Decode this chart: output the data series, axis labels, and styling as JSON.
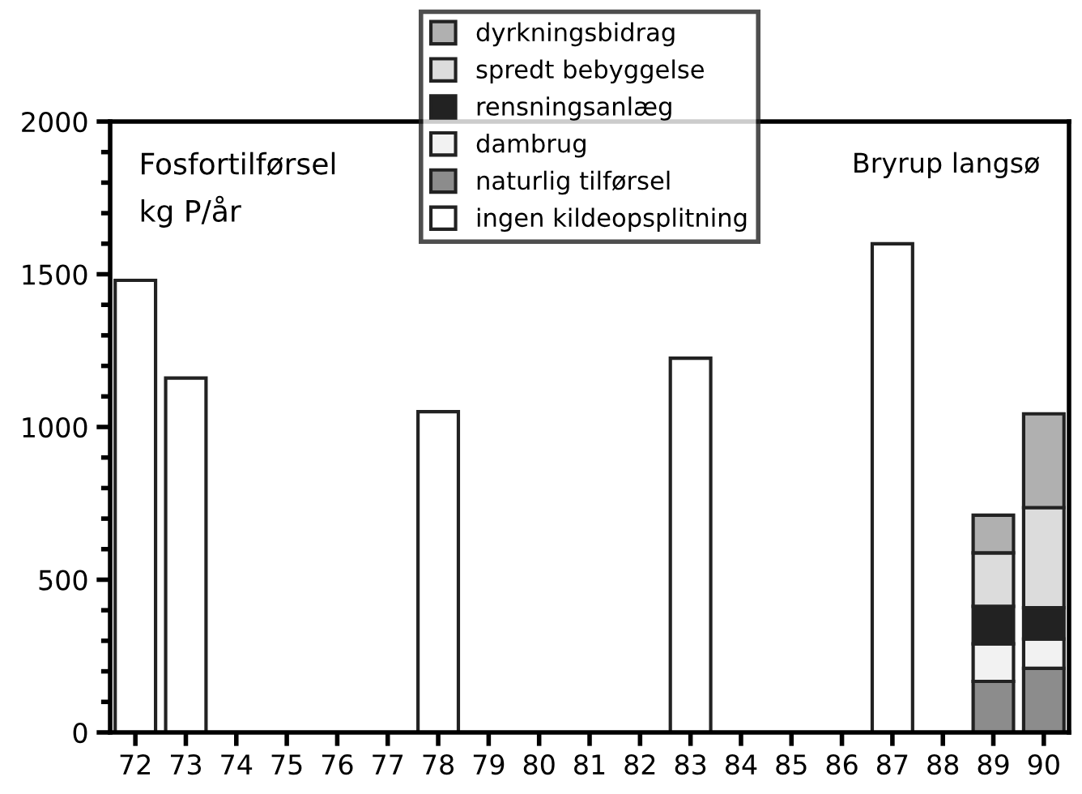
{
  "chart_data": {
    "type": "bar",
    "title": "Fosfortilførsel\nkg P/år",
    "subtitle": "Bryrup langsø",
    "stacked": true,
    "categories": [
      "72",
      "73",
      "74",
      "75",
      "76",
      "77",
      "78",
      "79",
      "80",
      "81",
      "82",
      "83",
      "84",
      "85",
      "86",
      "87",
      "88",
      "89",
      "90"
    ],
    "series": [
      {
        "name": "ingen kildeopsplitning",
        "color": "#ffffff",
        "values": [
          1480,
          1160,
          null,
          null,
          null,
          null,
          1050,
          null,
          null,
          null,
          null,
          1225,
          null,
          null,
          null,
          1600,
          null,
          null,
          null
        ]
      },
      {
        "name": "naturlig tilførsel",
        "color": "#8c8c8c",
        "values": [
          null,
          null,
          null,
          null,
          null,
          null,
          null,
          null,
          null,
          null,
          null,
          null,
          null,
          null,
          null,
          null,
          null,
          167,
          210
        ]
      },
      {
        "name": "dambrug",
        "color": "#f2f2f2",
        "values": [
          null,
          null,
          null,
          null,
          null,
          null,
          null,
          null,
          null,
          null,
          null,
          null,
          null,
          null,
          null,
          null,
          null,
          123,
          96
        ]
      },
      {
        "name": "rensningsanlæg",
        "color": "#222222",
        "values": [
          null,
          null,
          null,
          null,
          null,
          null,
          null,
          null,
          null,
          null,
          null,
          null,
          null,
          null,
          null,
          null,
          null,
          123,
          102
        ]
      },
      {
        "name": "spredt bebyggelse",
        "color": "#dcdcdc",
        "values": [
          null,
          null,
          null,
          null,
          null,
          null,
          null,
          null,
          null,
          null,
          null,
          null,
          null,
          null,
          null,
          null,
          null,
          175,
          328
        ]
      },
      {
        "name": "dyrkningsbidrag",
        "color": "#b0b0b0",
        "values": [
          null,
          null,
          null,
          null,
          null,
          null,
          null,
          null,
          null,
          null,
          null,
          null,
          null,
          null,
          null,
          null,
          null,
          123,
          307
        ]
      }
    ],
    "ylim": [
      0,
      2000
    ],
    "yticks": [
      0,
      500,
      1000,
      1500,
      2000
    ],
    "grid": false,
    "legend": "top"
  }
}
